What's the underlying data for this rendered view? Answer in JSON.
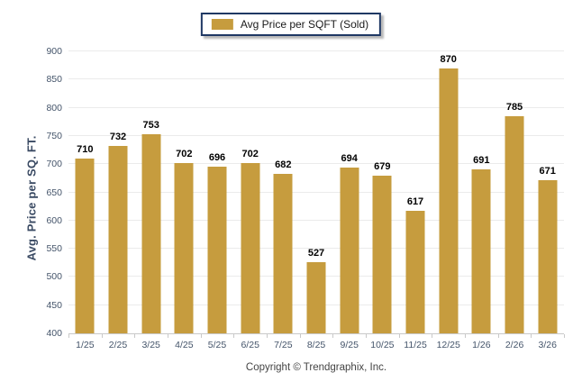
{
  "chart_data": {
    "type": "bar",
    "title": "",
    "xlabel": "",
    "ylabel": "Avg. Price per SQ. FT.",
    "legend_label": "Avg Price per SQFT (Sold)",
    "legend_position": "top-center",
    "categories": [
      "1/25",
      "2/25",
      "3/25",
      "4/25",
      "5/25",
      "6/25",
      "7/25",
      "8/25",
      "9/25",
      "10/25",
      "11/25",
      "12/25",
      "1/26",
      "2/26",
      "3/26"
    ],
    "values": [
      710,
      732,
      753,
      702,
      696,
      702,
      682,
      527,
      694,
      679,
      617,
      870,
      691,
      785,
      671
    ],
    "ylim": [
      400,
      900
    ],
    "yticks": [
      400,
      450,
      500,
      550,
      600,
      650,
      700,
      750,
      800,
      850,
      900
    ],
    "grid": "horizontal",
    "bar_color": "#C69C3E",
    "grid_color": "#ebebeb",
    "axis_text_color": "#44546A",
    "legend_border_color": "#1F3864"
  },
  "footer": {
    "copyright": "Copyright © Trendgraphix, Inc."
  }
}
